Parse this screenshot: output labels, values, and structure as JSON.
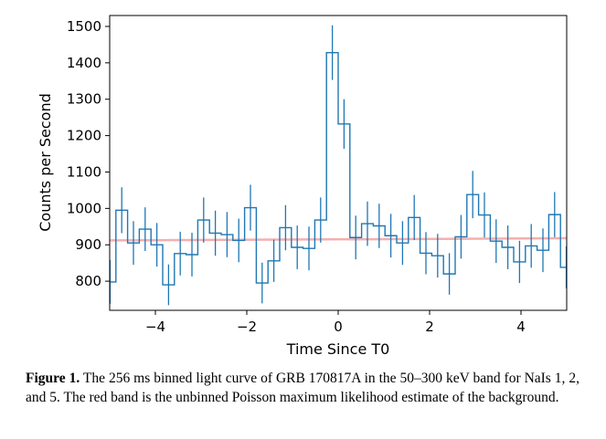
{
  "chart_data": {
    "type": "line",
    "xlabel": "Time Since T0",
    "ylabel": "Counts per Second",
    "xlim": [
      -5,
      5
    ],
    "ylim": [
      720,
      1530
    ],
    "xticks": [
      -4,
      -2,
      0,
      2,
      4
    ],
    "xtick_labels": [
      "−4",
      "−2",
      "0",
      "2",
      "4"
    ],
    "yticks": [
      800,
      900,
      1000,
      1100,
      1200,
      1300,
      1400,
      1500
    ],
    "bin_width": 0.256,
    "series": [
      {
        "color": "#1f77b4",
        "bin_starts": [
          -5.12,
          -4.864,
          -4.608,
          -4.352,
          -4.096,
          -3.84,
          -3.584,
          -3.328,
          -3.072,
          -2.816,
          -2.56,
          -2.304,
          -2.048,
          -1.792,
          -1.536,
          -1.28,
          -1.024,
          -0.768,
          -0.512,
          -0.256,
          0.0,
          0.256,
          0.512,
          0.768,
          1.024,
          1.28,
          1.536,
          1.792,
          2.048,
          2.304,
          2.56,
          2.816,
          3.072,
          3.328,
          3.584,
          3.84,
          4.096,
          4.352,
          4.608,
          4.864
        ],
        "values": [
          798,
          995,
          905,
          943,
          900,
          790,
          876,
          873,
          968,
          932,
          928,
          912,
          1002,
          795,
          856,
          947,
          893,
          890,
          968,
          1428,
          1232,
          920,
          958,
          952,
          925,
          905,
          975,
          877,
          870,
          820,
          922,
          1038,
          982,
          910,
          893,
          853,
          897,
          885,
          983,
          838
        ],
        "errors": [
          60,
          63,
          60,
          60,
          60,
          56,
          60,
          60,
          62,
          62,
          62,
          60,
          63,
          56,
          58,
          62,
          60,
          60,
          62,
          75,
          68,
          60,
          61,
          61,
          60,
          60,
          62,
          58,
          60,
          57,
          60,
          65,
          62,
          60,
          60,
          58,
          60,
          60,
          62,
          58
        ]
      },
      {
        "color": "#f4a6a6",
        "x": [
          -5,
          5
        ],
        "values": [
          912,
          918
        ]
      }
    ]
  },
  "caption": {
    "label": "Figure 1.",
    "text": " The 256 ms binned light curve of GRB 170817A in the 50–300 keV band for NaIs 1, 2, and 5. The red band is the unbinned Poisson maximum likelihood estimate of the background."
  }
}
